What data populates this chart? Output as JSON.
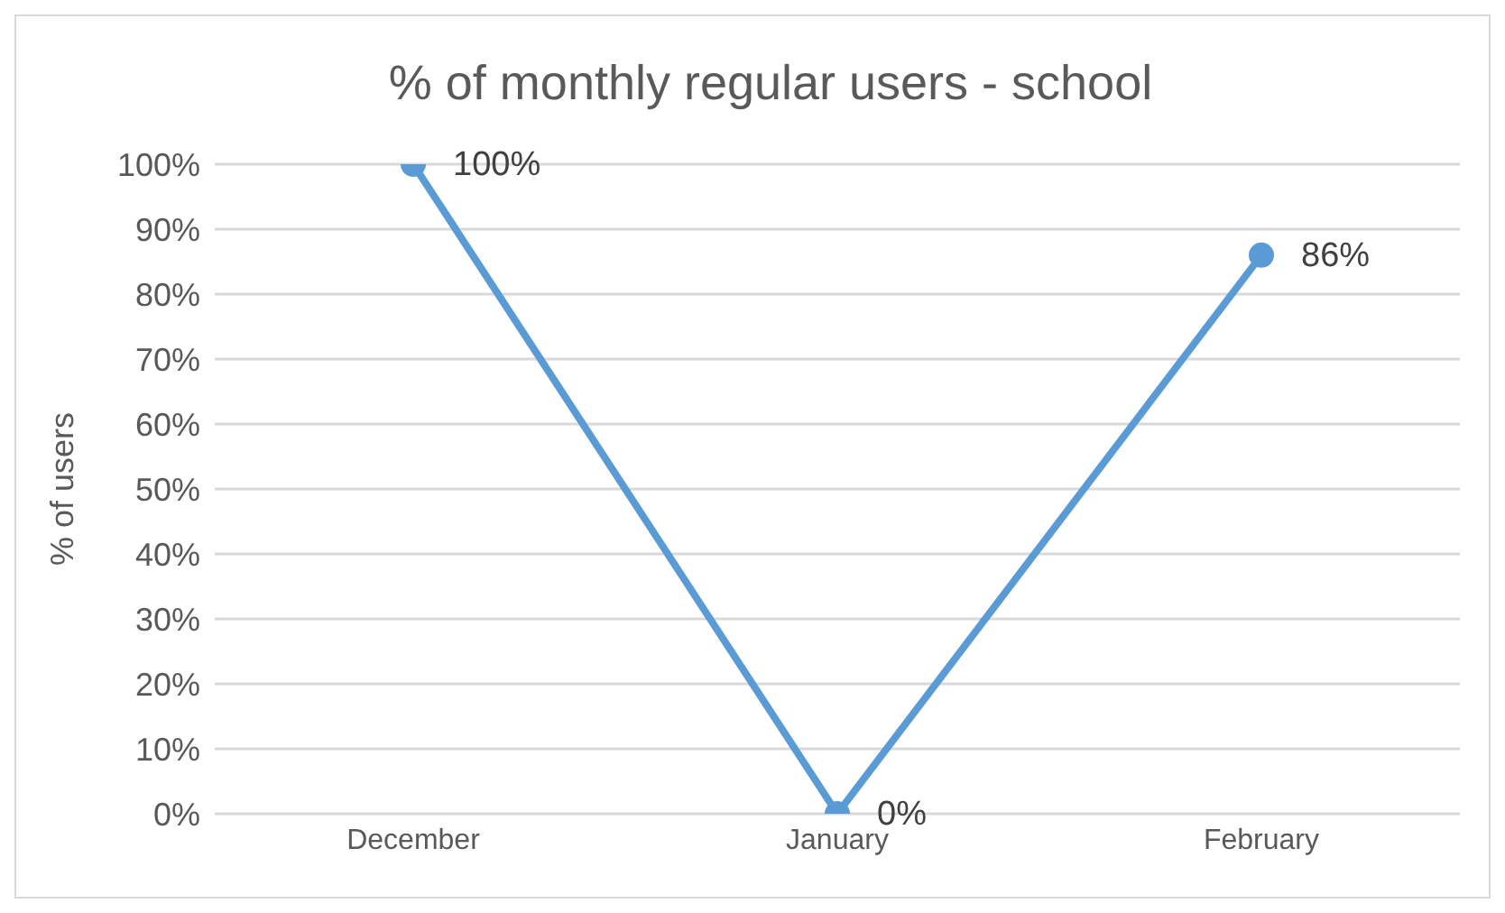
{
  "chart_data": {
    "type": "line",
    "title": "% of monthly regular users - school",
    "ylabel": "% of users",
    "categories": [
      "December",
      "January",
      "February"
    ],
    "series": [
      {
        "color": "#5b9bd5",
        "values": [
          100,
          0,
          86
        ],
        "value_labels": [
          "100%",
          "0%",
          "86%"
        ]
      }
    ],
    "ylim": [
      0,
      100
    ],
    "yticks": [
      {
        "value": 0,
        "label": "0%"
      },
      {
        "value": 10,
        "label": "10%"
      },
      {
        "value": 20,
        "label": "20%"
      },
      {
        "value": 30,
        "label": "30%"
      },
      {
        "value": 40,
        "label": "40%"
      },
      {
        "value": 50,
        "label": "50%"
      },
      {
        "value": 60,
        "label": "60%"
      },
      {
        "value": 70,
        "label": "70%"
      },
      {
        "value": 80,
        "label": "80%"
      },
      {
        "value": 90,
        "label": "90%"
      },
      {
        "value": 100,
        "label": "100%"
      }
    ],
    "grid": "y",
    "marker": "circle",
    "line_style": "solid"
  }
}
